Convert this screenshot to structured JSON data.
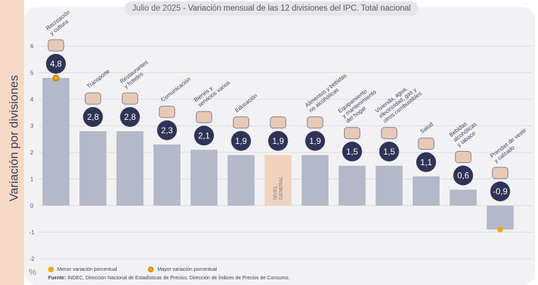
{
  "title": "Julio de 2025",
  "subtitle": "Variación mensual de las 12 divisiones del IPC. Total nacional",
  "ylabel": "Variación por divisiones",
  "unit": "%",
  "legend": {
    "min": "Menor variación porcentual",
    "max": "Mayor variación porcentual"
  },
  "source_label": "Fuente:",
  "source": "INDEC, Dirección Nacional de Estadísticas de Precios. Dirección de Índices de Precios de Consumo.",
  "colors": {
    "bar": "#b4b8c9",
    "general": "#f0d3bf",
    "circle": "#2f3457",
    "dot": "#f2a516",
    "grid": "#dcdce2",
    "text": "#3d3d5c"
  },
  "chart_data": {
    "type": "bar",
    "ylim": [
      -2,
      6
    ],
    "yticks": [
      "6",
      "5",
      "4",
      "3",
      "2",
      "1",
      "0",
      "-1",
      "-2"
    ],
    "categories": [
      "Recreación y cultura",
      "Transporte",
      "Restaurantes y hoteles",
      "Comunicación",
      "Bienes y servicios varios",
      "Educación",
      "NIVEL GENERAL",
      "Alimentos y bebidas no alcohólicas",
      "Equipamiento y mantenimiento del hogar",
      "Vivienda, agua, electricidad, gas y otros combustibles",
      "Salud",
      "Bebidas alcohólicas y tabaco",
      "Prendas de vestir y calzado"
    ],
    "values": [
      4.8,
      2.8,
      2.8,
      2.3,
      2.1,
      1.9,
      1.9,
      1.9,
      1.5,
      1.5,
      1.1,
      0.6,
      -0.9
    ],
    "value_labels": [
      "4,8",
      "2,8",
      "2,8",
      "2,3",
      "2,1",
      "1,9",
      "1,9",
      "1,9",
      "1,5",
      "1,5",
      "1,1",
      "0,6",
      "-0,9"
    ],
    "category_labels": [
      [
        "Recreación",
        "y cultura"
      ],
      [
        "Transporte"
      ],
      [
        "Restaurantes",
        "y hoteles"
      ],
      [
        "Comunicación"
      ],
      [
        "Bienes y",
        "servicios varios"
      ],
      [
        "Educación"
      ],
      [],
      [
        "Alimentos y bebidas",
        "no alcohólicas"
      ],
      [
        "Equipamiento",
        "y mantenimiento",
        "del hogar"
      ],
      [
        "Vivienda, agua,",
        "electricidad, gas y",
        "otros combustibles"
      ],
      [
        "Salud"
      ],
      [
        "Bebidas",
        "alcohólicas",
        "y tabaco"
      ],
      [
        "Prendas de vestir",
        "y calzado"
      ]
    ],
    "general_label": [
      "NIVEL",
      "GENERAL"
    ],
    "highlight_max_index": 0,
    "highlight_min_index": 12,
    "icons": [
      "sun-umbrella-icon",
      "bus-icon",
      "plate-cutlery-icon",
      "phone-icon",
      "comb-scissors-icon",
      "book-icon",
      "basket-icon",
      "food-icon",
      "toaster-icon",
      "lightbulb-icon",
      "health-cross-icon",
      "bottle-icon",
      "clothes-icon"
    ]
  }
}
